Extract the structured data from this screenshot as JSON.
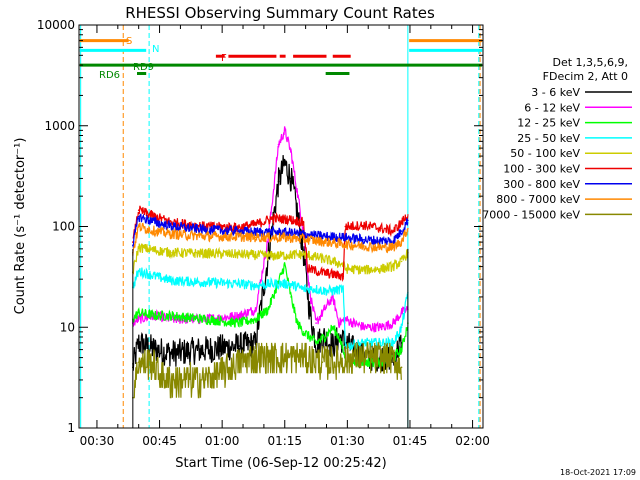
{
  "chart_data": {
    "type": "line",
    "title": "RHESSI Observing Summary Count Rates",
    "xlabel": "Start Time (06-Sep-12 00:25:42)",
    "ylabel": "Count Rate (s⁻¹ detector⁻¹)",
    "ylog": true,
    "ylim": [
      1,
      10000
    ],
    "xlim": [
      25.7,
      122.5
    ],
    "x_unit": "minutes after 00:00 UT on 06-Sep-12",
    "x_ticks": [
      {
        "value": 30,
        "label": "00:30"
      },
      {
        "value": 45,
        "label": "00:45"
      },
      {
        "value": 60,
        "label": "01:00"
      },
      {
        "value": 75,
        "label": "01:15"
      },
      {
        "value": 90,
        "label": "01:30"
      },
      {
        "value": 105,
        "label": "01:45"
      },
      {
        "value": 120,
        "label": "02:00"
      }
    ],
    "y_ticks": [
      {
        "value": 1,
        "label": "1"
      },
      {
        "value": 10,
        "label": "10"
      },
      {
        "value": 100,
        "label": "100"
      },
      {
        "value": 1000,
        "label": "1000"
      },
      {
        "value": 10000,
        "label": "10000"
      }
    ],
    "legend": {
      "position": "right",
      "header": [
        "Det 1,3,5,6,9,",
        "FDecim 2, Att 0"
      ]
    },
    "series": [
      {
        "name": "3 - 6 keV",
        "color": "#000000",
        "x": [
          38.6,
          40,
          44,
          48,
          56,
          64,
          68,
          71,
          73.5,
          75,
          76.5,
          78,
          79.5,
          81,
          82.5,
          84.5,
          86.5,
          88,
          89.5,
          91.5,
          94,
          98,
          101,
          103
        ],
        "y": [
          4,
          7,
          6,
          5.5,
          6,
          6.5,
          6.8,
          50,
          280,
          420,
          300,
          140,
          55,
          14,
          7,
          8,
          6.5,
          8,
          7,
          6,
          5,
          5,
          5,
          7
        ]
      },
      {
        "name": "6 - 12 keV",
        "color": "#ff00ff",
        "x": [
          38.6,
          40,
          44,
          48,
          56,
          64,
          68,
          71,
          73.5,
          75,
          76.5,
          78,
          79.5,
          81,
          82.5,
          84.5,
          86.5,
          88,
          89.5,
          91.5,
          94,
          98,
          101,
          103,
          104.5
        ],
        "y": [
          11,
          12,
          13,
          12,
          12,
          13,
          15,
          75,
          650,
          900,
          550,
          220,
          90,
          22,
          11,
          15,
          20,
          11,
          12,
          11,
          10,
          10,
          11,
          14,
          15
        ]
      },
      {
        "name": "12 - 25 keV",
        "color": "#00ff00",
        "x": [
          38.6,
          40,
          44,
          48,
          56,
          64,
          68,
          71,
          73.5,
          75,
          76.5,
          78,
          79.5,
          81,
          82.5,
          84.5,
          86.5,
          88,
          89.5,
          91.5,
          94,
          98,
          101,
          103,
          104.5
        ],
        "y": [
          12,
          14,
          13,
          13,
          12,
          11,
          12,
          15,
          28,
          42,
          20,
          11,
          9,
          8,
          7,
          8,
          10,
          8,
          5,
          4.5,
          4.5,
          4.5,
          5,
          6,
          11
        ]
      },
      {
        "name": "25 - 50 keV",
        "color": "#00ffff",
        "x": [
          38.6,
          40,
          44,
          48,
          56,
          64,
          68,
          72,
          76,
          79.5,
          81,
          82.5,
          84.5,
          86.5,
          89,
          89.5,
          94,
          98,
          101,
          103,
          104.5
        ],
        "y": [
          25,
          36,
          32,
          29,
          28,
          27,
          26,
          27,
          27,
          24,
          24,
          24,
          23,
          23,
          24,
          6.5,
          7,
          7,
          7,
          10,
          22
        ]
      },
      {
        "name": "50 - 100 keV",
        "color": "#cccc00",
        "x": [
          38.6,
          40,
          44,
          48,
          56,
          64,
          68,
          72,
          76,
          79.5,
          84,
          89,
          89.5,
          94,
          98,
          101,
          103,
          104.5
        ],
        "y": [
          35,
          62,
          58,
          55,
          54,
          53,
          52,
          51,
          52,
          53,
          48,
          42,
          38,
          37,
          38,
          40,
          45,
          55
        ]
      },
      {
        "name": "100 - 300 keV",
        "color": "#ee0000",
        "x": [
          38.6,
          40,
          44,
          48,
          56,
          64,
          68,
          72,
          76,
          79.5,
          80.5,
          84,
          89,
          89.5,
          94,
          98,
          101,
          103,
          104.5
        ],
        "y": [
          70,
          145,
          125,
          110,
          100,
          98,
          105,
          120,
          118,
          110,
          38,
          35,
          32,
          100,
          103,
          96,
          90,
          110,
          130
        ]
      },
      {
        "name": "300 - 800 keV",
        "color": "#0000ee",
        "x": [
          38.6,
          40,
          44,
          48,
          56,
          64,
          68,
          72,
          76,
          79.5,
          84,
          89,
          94,
          98,
          101,
          103,
          104.5
        ],
        "y": [
          65,
          125,
          110,
          100,
          93,
          90,
          88,
          88,
          87,
          84,
          80,
          78,
          74,
          72,
          72,
          90,
          115
        ]
      },
      {
        "name": "800 - 7000 keV",
        "color": "#ff8800",
        "x": [
          38.6,
          40,
          44,
          48,
          56,
          64,
          68,
          72,
          76,
          79.5,
          84,
          89,
          94,
          98,
          101,
          103,
          104.5
        ],
        "y": [
          55,
          100,
          90,
          84,
          80,
          79,
          78,
          78,
          77,
          75,
          71,
          67,
          64,
          62,
          62,
          72,
          95
        ]
      },
      {
        "name": "7000 - 15000 keV",
        "color": "#888800",
        "x": [
          38.6,
          40,
          43,
          46,
          50,
          56,
          60,
          64,
          68,
          72,
          76,
          80,
          84,
          88,
          92,
          96,
          100,
          103
        ],
        "y": [
          2,
          4.5,
          4.5,
          3,
          3,
          3,
          3.5,
          4.5,
          5,
          5,
          5,
          5,
          4.5,
          4.5,
          5,
          5,
          5,
          4
        ]
      }
    ],
    "state_bars": [
      {
        "label": "S",
        "color": "#ff8800",
        "y": 7000,
        "segments": [
          [
            25.9,
            37.6
          ],
          [
            104.8,
            122.3
          ]
        ]
      },
      {
        "label": "N",
        "color": "#00ffff",
        "y": 5600,
        "segments": [
          [
            25.9,
            41.8
          ],
          [
            104.8,
            122.3
          ]
        ]
      },
      {
        "label": "F",
        "color": "#ee0000",
        "y": 4900,
        "segments": [
          [
            58.5,
            60.6
          ],
          [
            61.5,
            73.0
          ],
          [
            73.8,
            75.2
          ],
          [
            77.0,
            85.0
          ],
          [
            86.5,
            90.8
          ]
        ]
      },
      {
        "label": "RD9",
        "color": "#008800",
        "y": 4000,
        "segments": [
          [
            25.9,
            122.3
          ]
        ]
      },
      {
        "label": "RD6",
        "color": "#008800",
        "y": 3300,
        "segments": [
          [
            39.6,
            41.8
          ],
          [
            84.8,
            90.5
          ]
        ]
      }
    ],
    "saa_lines": [
      {
        "x": 36.3,
        "color": "#ff8800",
        "style": "dashed"
      },
      {
        "x": 42.5,
        "color": "#00ffff",
        "style": "dashed"
      },
      {
        "x": 26.1,
        "color": "#00ffff",
        "style": "solid"
      },
      {
        "x": 104.5,
        "color": "#00ffff",
        "style": "solid"
      },
      {
        "x": 121.5,
        "color": "#00ffff",
        "style": "dashed"
      },
      {
        "x": 121.8,
        "color": "#ff8800",
        "style": "dashed"
      }
    ],
    "footer": "18-Oct-2021 17:09"
  }
}
